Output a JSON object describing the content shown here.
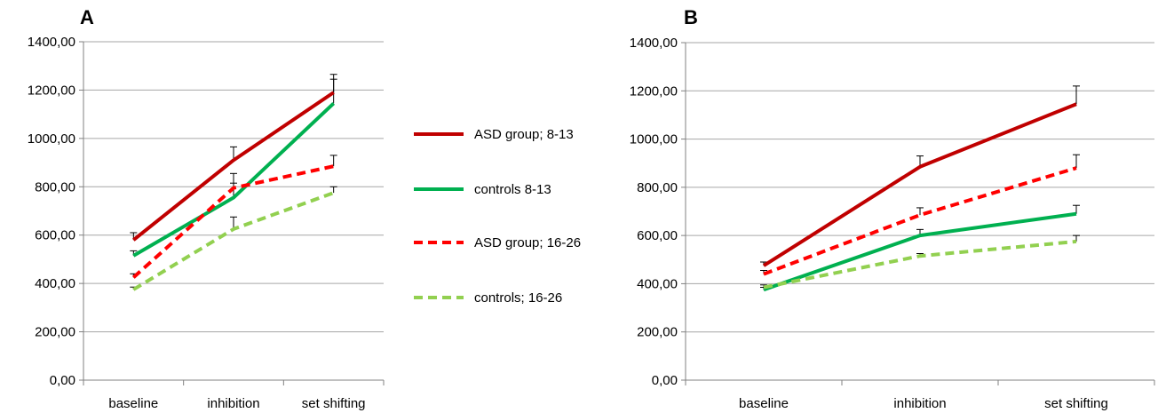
{
  "chart_data": [
    {
      "type": "line",
      "panel_label": "A",
      "categories": [
        "baseline",
        "inhibition",
        "set shifting"
      ],
      "ylim": [
        0,
        1400
      ],
      "yticks": [
        "0,00",
        "200,00",
        "400,00",
        "600,00",
        "800,00",
        "1000,00",
        "1200,00",
        "1400,00"
      ],
      "grid": true,
      "series": [
        {
          "name": "ASD group; 8-13",
          "color": "#c00000",
          "dash": false,
          "values": [
            580,
            910,
            1190
          ],
          "errors": [
            30,
            55,
            75
          ]
        },
        {
          "name": "controls 8-13",
          "color": "#00b050",
          "dash": false,
          "values": [
            515,
            755,
            1145
          ],
          "errors": [
            20,
            100,
            100
          ]
        },
        {
          "name": "ASD group; 16-26",
          "color": "#ff0000",
          "dash": true,
          "values": [
            425,
            795,
            885
          ],
          "errors": [
            15,
            20,
            45
          ]
        },
        {
          "name": "controls; 16-26",
          "color": "#92d050",
          "dash": true,
          "values": [
            375,
            625,
            775
          ],
          "errors": [
            10,
            50,
            25
          ]
        }
      ]
    },
    {
      "type": "line",
      "panel_label": "B",
      "categories": [
        "baseline",
        "inhibition",
        "set shifting"
      ],
      "ylim": [
        0,
        1400
      ],
      "yticks": [
        "0,00",
        "200,00",
        "400,00",
        "600,00",
        "800,00",
        "1000,00",
        "1200,00",
        "1400,00"
      ],
      "grid": true,
      "series": [
        {
          "name": "ASD group; 8-13",
          "color": "#c00000",
          "dash": false,
          "values": [
            475,
            885,
            1145
          ],
          "errors": [
            15,
            45,
            75
          ]
        },
        {
          "name": "controls 8-13",
          "color": "#00b050",
          "dash": false,
          "values": [
            375,
            600,
            690
          ],
          "errors": [
            10,
            25,
            35
          ]
        },
        {
          "name": "ASD group; 16-26",
          "color": "#ff0000",
          "dash": true,
          "values": [
            440,
            685,
            880
          ],
          "errors": [
            15,
            30,
            55
          ]
        },
        {
          "name": "controls; 16-26",
          "color": "#92d050",
          "dash": true,
          "values": [
            385,
            515,
            575
          ],
          "errors": [
            10,
            10,
            25
          ]
        }
      ]
    }
  ],
  "legend": {
    "placement": "between panels",
    "items": [
      {
        "label": "ASD group; 8-13",
        "color": "#c00000",
        "dash": false
      },
      {
        "label": "controls 8-13",
        "color": "#00b050",
        "dash": false
      },
      {
        "label": "ASD group; 16-26",
        "color": "#ff0000",
        "dash": true
      },
      {
        "label": "controls; 16-26",
        "color": "#92d050",
        "dash": true
      }
    ]
  }
}
